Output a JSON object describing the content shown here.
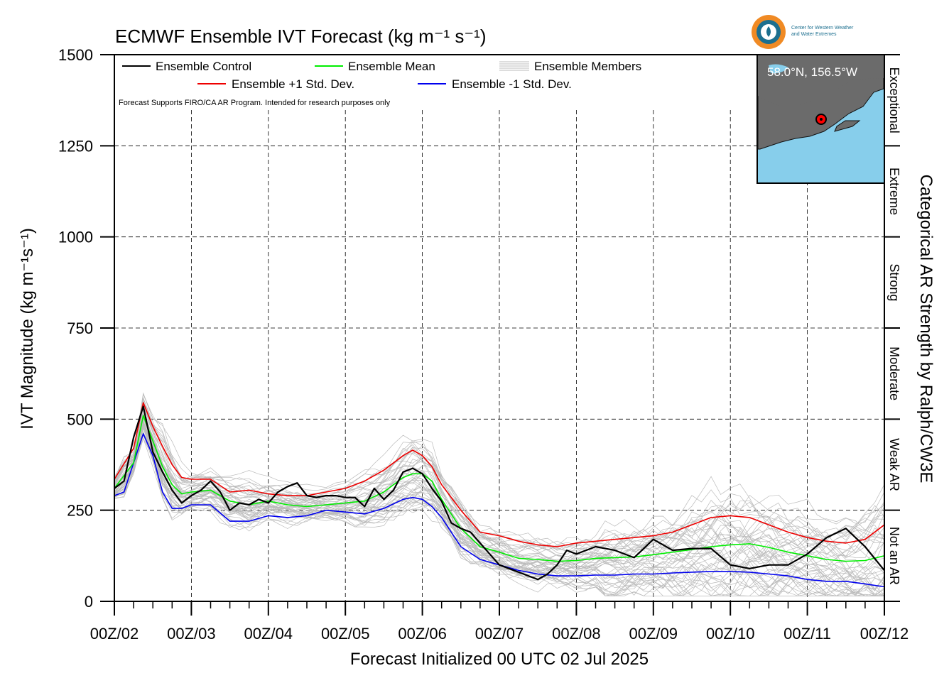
{
  "chart_data": {
    "type": "line",
    "title": "ECMWF Ensemble IVT Forecast (kg m⁻¹ s⁻¹)",
    "ylabel": "IVT Magnitude (kg m⁻¹s⁻¹)",
    "xlabel": "Forecast Initialized 00 UTC 02 Jul 2025",
    "right_label": "Categorical AR Strength by Ralph/CW3E",
    "note": "Forecast Supports FIRO/CA AR Program. Intended for research purposes only",
    "ylim": [
      0,
      1500
    ],
    "xlim": [
      0,
      240
    ],
    "grid": true,
    "legend_position": "top-left",
    "y_ticks": [
      0,
      250,
      500,
      750,
      1000,
      1250,
      1500
    ],
    "y_tick_labels": [
      "0",
      "250",
      "500",
      "750",
      "1000",
      "1250",
      "1500"
    ],
    "x_ticks": [
      0,
      24,
      48,
      72,
      96,
      120,
      144,
      168,
      192,
      216,
      240
    ],
    "x_tick_labels": [
      "00Z/02",
      "00Z/03",
      "00Z/04",
      "00Z/05",
      "00Z/06",
      "00Z/07",
      "00Z/08",
      "00Z/09",
      "00Z/10",
      "00Z/11",
      "00Z/12"
    ],
    "x_unit": "forecast hour",
    "categories": [
      {
        "label": "Not an AR",
        "range": [
          0,
          250
        ]
      },
      {
        "label": "Weak AR",
        "range": [
          250,
          500
        ]
      },
      {
        "label": "Moderate",
        "range": [
          500,
          750
        ]
      },
      {
        "label": "Strong",
        "range": [
          750,
          1000
        ]
      },
      {
        "label": "Extreme",
        "range": [
          1000,
          1250
        ]
      },
      {
        "label": "Exceptional",
        "range": [
          1250,
          1500
        ]
      }
    ],
    "series": [
      {
        "name": "Ensemble Control",
        "color": "#000000",
        "x": [
          0,
          3,
          6,
          9,
          12,
          15,
          18,
          21,
          24,
          27,
          30,
          33,
          36,
          39,
          42,
          45,
          48,
          51,
          54,
          57,
          60,
          63,
          66,
          69,
          72,
          75,
          78,
          81,
          84,
          87,
          90,
          93,
          96,
          99,
          102,
          105,
          108,
          111,
          114,
          117,
          120,
          126,
          132,
          135,
          138,
          141,
          144,
          150,
          156,
          162,
          168,
          174,
          180,
          186,
          192,
          198,
          204,
          210,
          216,
          222,
          228,
          234,
          240
        ],
        "y": [
          310,
          330,
          450,
          535,
          410,
          355,
          305,
          270,
          290,
          305,
          330,
          300,
          250,
          270,
          265,
          280,
          270,
          300,
          315,
          325,
          290,
          285,
          290,
          290,
          285,
          285,
          260,
          310,
          280,
          305,
          355,
          365,
          350,
          310,
          275,
          215,
          200,
          190,
          160,
          130,
          100,
          80,
          60,
          75,
          100,
          140,
          130,
          150,
          140,
          120,
          170,
          140,
          145,
          145,
          100,
          90,
          100,
          100,
          130,
          175,
          200,
          150,
          85
        ]
      },
      {
        "name": "Ensemble Mean",
        "color": "#00ee00",
        "x": [
          0,
          6,
          9,
          12,
          15,
          18,
          21,
          24,
          30,
          36,
          42,
          48,
          54,
          60,
          66,
          72,
          78,
          84,
          90,
          93,
          96,
          99,
          102,
          108,
          114,
          120,
          126,
          132,
          138,
          144,
          150,
          156,
          162,
          168,
          174,
          180,
          186,
          192,
          198,
          204,
          210,
          216,
          222,
          228,
          234,
          240
        ],
        "y": [
          310,
          380,
          510,
          440,
          370,
          320,
          295,
          300,
          305,
          275,
          265,
          275,
          265,
          260,
          265,
          270,
          275,
          300,
          340,
          350,
          350,
          330,
          280,
          200,
          150,
          135,
          118,
          115,
          110,
          112,
          118,
          120,
          122,
          128,
          135,
          142,
          150,
          155,
          158,
          148,
          135,
          125,
          115,
          110,
          112,
          125
        ]
      },
      {
        "name": "Ensemble +1 Std. Dev.",
        "color": "#ee0000",
        "x": [
          0,
          6,
          9,
          12,
          15,
          18,
          21,
          24,
          30,
          36,
          42,
          48,
          54,
          60,
          66,
          72,
          78,
          84,
          90,
          93,
          96,
          99,
          102,
          108,
          114,
          120,
          126,
          132,
          138,
          144,
          150,
          156,
          162,
          168,
          174,
          180,
          186,
          192,
          198,
          204,
          210,
          216,
          222,
          228,
          234,
          240
        ],
        "y": [
          335,
          420,
          545,
          480,
          425,
          375,
          340,
          335,
          335,
          300,
          305,
          295,
          290,
          290,
          300,
          310,
          330,
          360,
          400,
          415,
          400,
          370,
          320,
          250,
          190,
          180,
          165,
          155,
          150,
          160,
          165,
          170,
          175,
          180,
          190,
          210,
          230,
          235,
          230,
          210,
          190,
          175,
          165,
          160,
          170,
          210
        ]
      },
      {
        "name": "Ensemble -1 Std. Dev.",
        "color": "#0000ee",
        "x": [
          0,
          3,
          6,
          9,
          12,
          15,
          18,
          21,
          24,
          30,
          36,
          42,
          48,
          54,
          60,
          66,
          72,
          78,
          84,
          90,
          93,
          96,
          99,
          102,
          108,
          114,
          120,
          126,
          132,
          138,
          144,
          150,
          156,
          162,
          168,
          174,
          180,
          186,
          192,
          198,
          204,
          210,
          216,
          222,
          228,
          234,
          240
        ],
        "y": [
          290,
          300,
          380,
          460,
          400,
          300,
          255,
          255,
          265,
          265,
          220,
          220,
          235,
          230,
          235,
          250,
          245,
          240,
          255,
          280,
          285,
          280,
          260,
          230,
          150,
          115,
          100,
          85,
          75,
          70,
          70,
          72,
          72,
          75,
          75,
          78,
          80,
          82,
          82,
          80,
          75,
          70,
          60,
          55,
          55,
          48,
          40
        ]
      }
    ],
    "legend": {
      "members_label": "Ensemble Members",
      "members_color": "#bbbbbb"
    },
    "inset": {
      "label": "58.0°N, 156.5°W",
      "logo_text_line1": "Center for Western Weather",
      "logo_text_line2": "and Water Extremes"
    }
  }
}
